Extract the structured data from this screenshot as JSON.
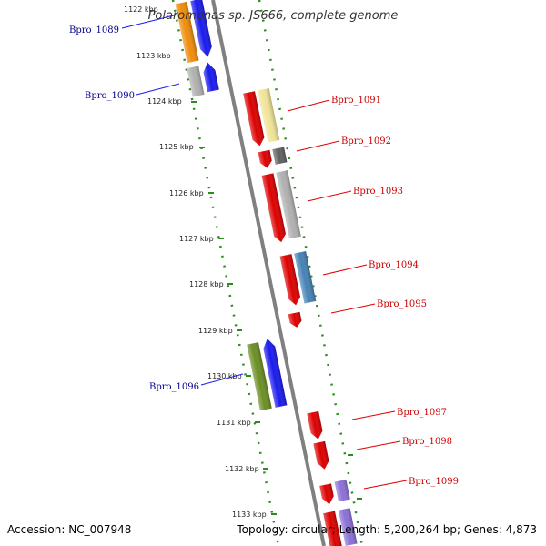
{
  "title": "Polaromonas sp. JS666, complete genome",
  "footer": {
    "accession": "Accession: NC_007948",
    "topology": "Topology: circular; Length: 5,200,264 bp; Genes: 4,873"
  },
  "kbp_labels": [
    "1122 kbp",
    "1123 kbp",
    "1124 kbp",
    "1125 kbp",
    "1126 kbp",
    "1127 kbp",
    "1128 kbp",
    "1129 kbp",
    "1130 kbp",
    "1131 kbp",
    "1132 kbp",
    "1133 kbp"
  ],
  "colors": {
    "backbone": "#808080",
    "tick_green": "#2e8b1e",
    "left_label": "#00008b",
    "right_label": "#cc0000"
  },
  "genes_left": [
    {
      "name": "Bpro_1089",
      "color": "#1a1aee"
    },
    {
      "name": "Bpro_1090",
      "color": "#1a1aee"
    },
    {
      "name": "Bpro_1096",
      "color": "#1a1aee"
    }
  ],
  "genes_right": [
    {
      "name": "Bpro_1091",
      "color": "#dd0000"
    },
    {
      "name": "Bpro_1092",
      "color": "#dd0000"
    },
    {
      "name": "Bpro_1093",
      "color": "#dd0000"
    },
    {
      "name": "Bpro_1094",
      "color": "#dd0000"
    },
    {
      "name": "Bpro_1095",
      "color": "#dd0000"
    },
    {
      "name": "Bpro_1097",
      "color": "#dd0000"
    },
    {
      "name": "Bpro_1098",
      "color": "#dd0000"
    },
    {
      "name": "Bpro_1099",
      "color": "#dd0000"
    }
  ],
  "cog_colors": {
    "orange": "#f08c0a",
    "grey": "#b0b0b0",
    "pale_yellow": "#efe496",
    "dark_grey": "#606060",
    "steel_blue": "#4682b4",
    "olive_green": "#6b8e23",
    "purple": "#8a70d6"
  }
}
